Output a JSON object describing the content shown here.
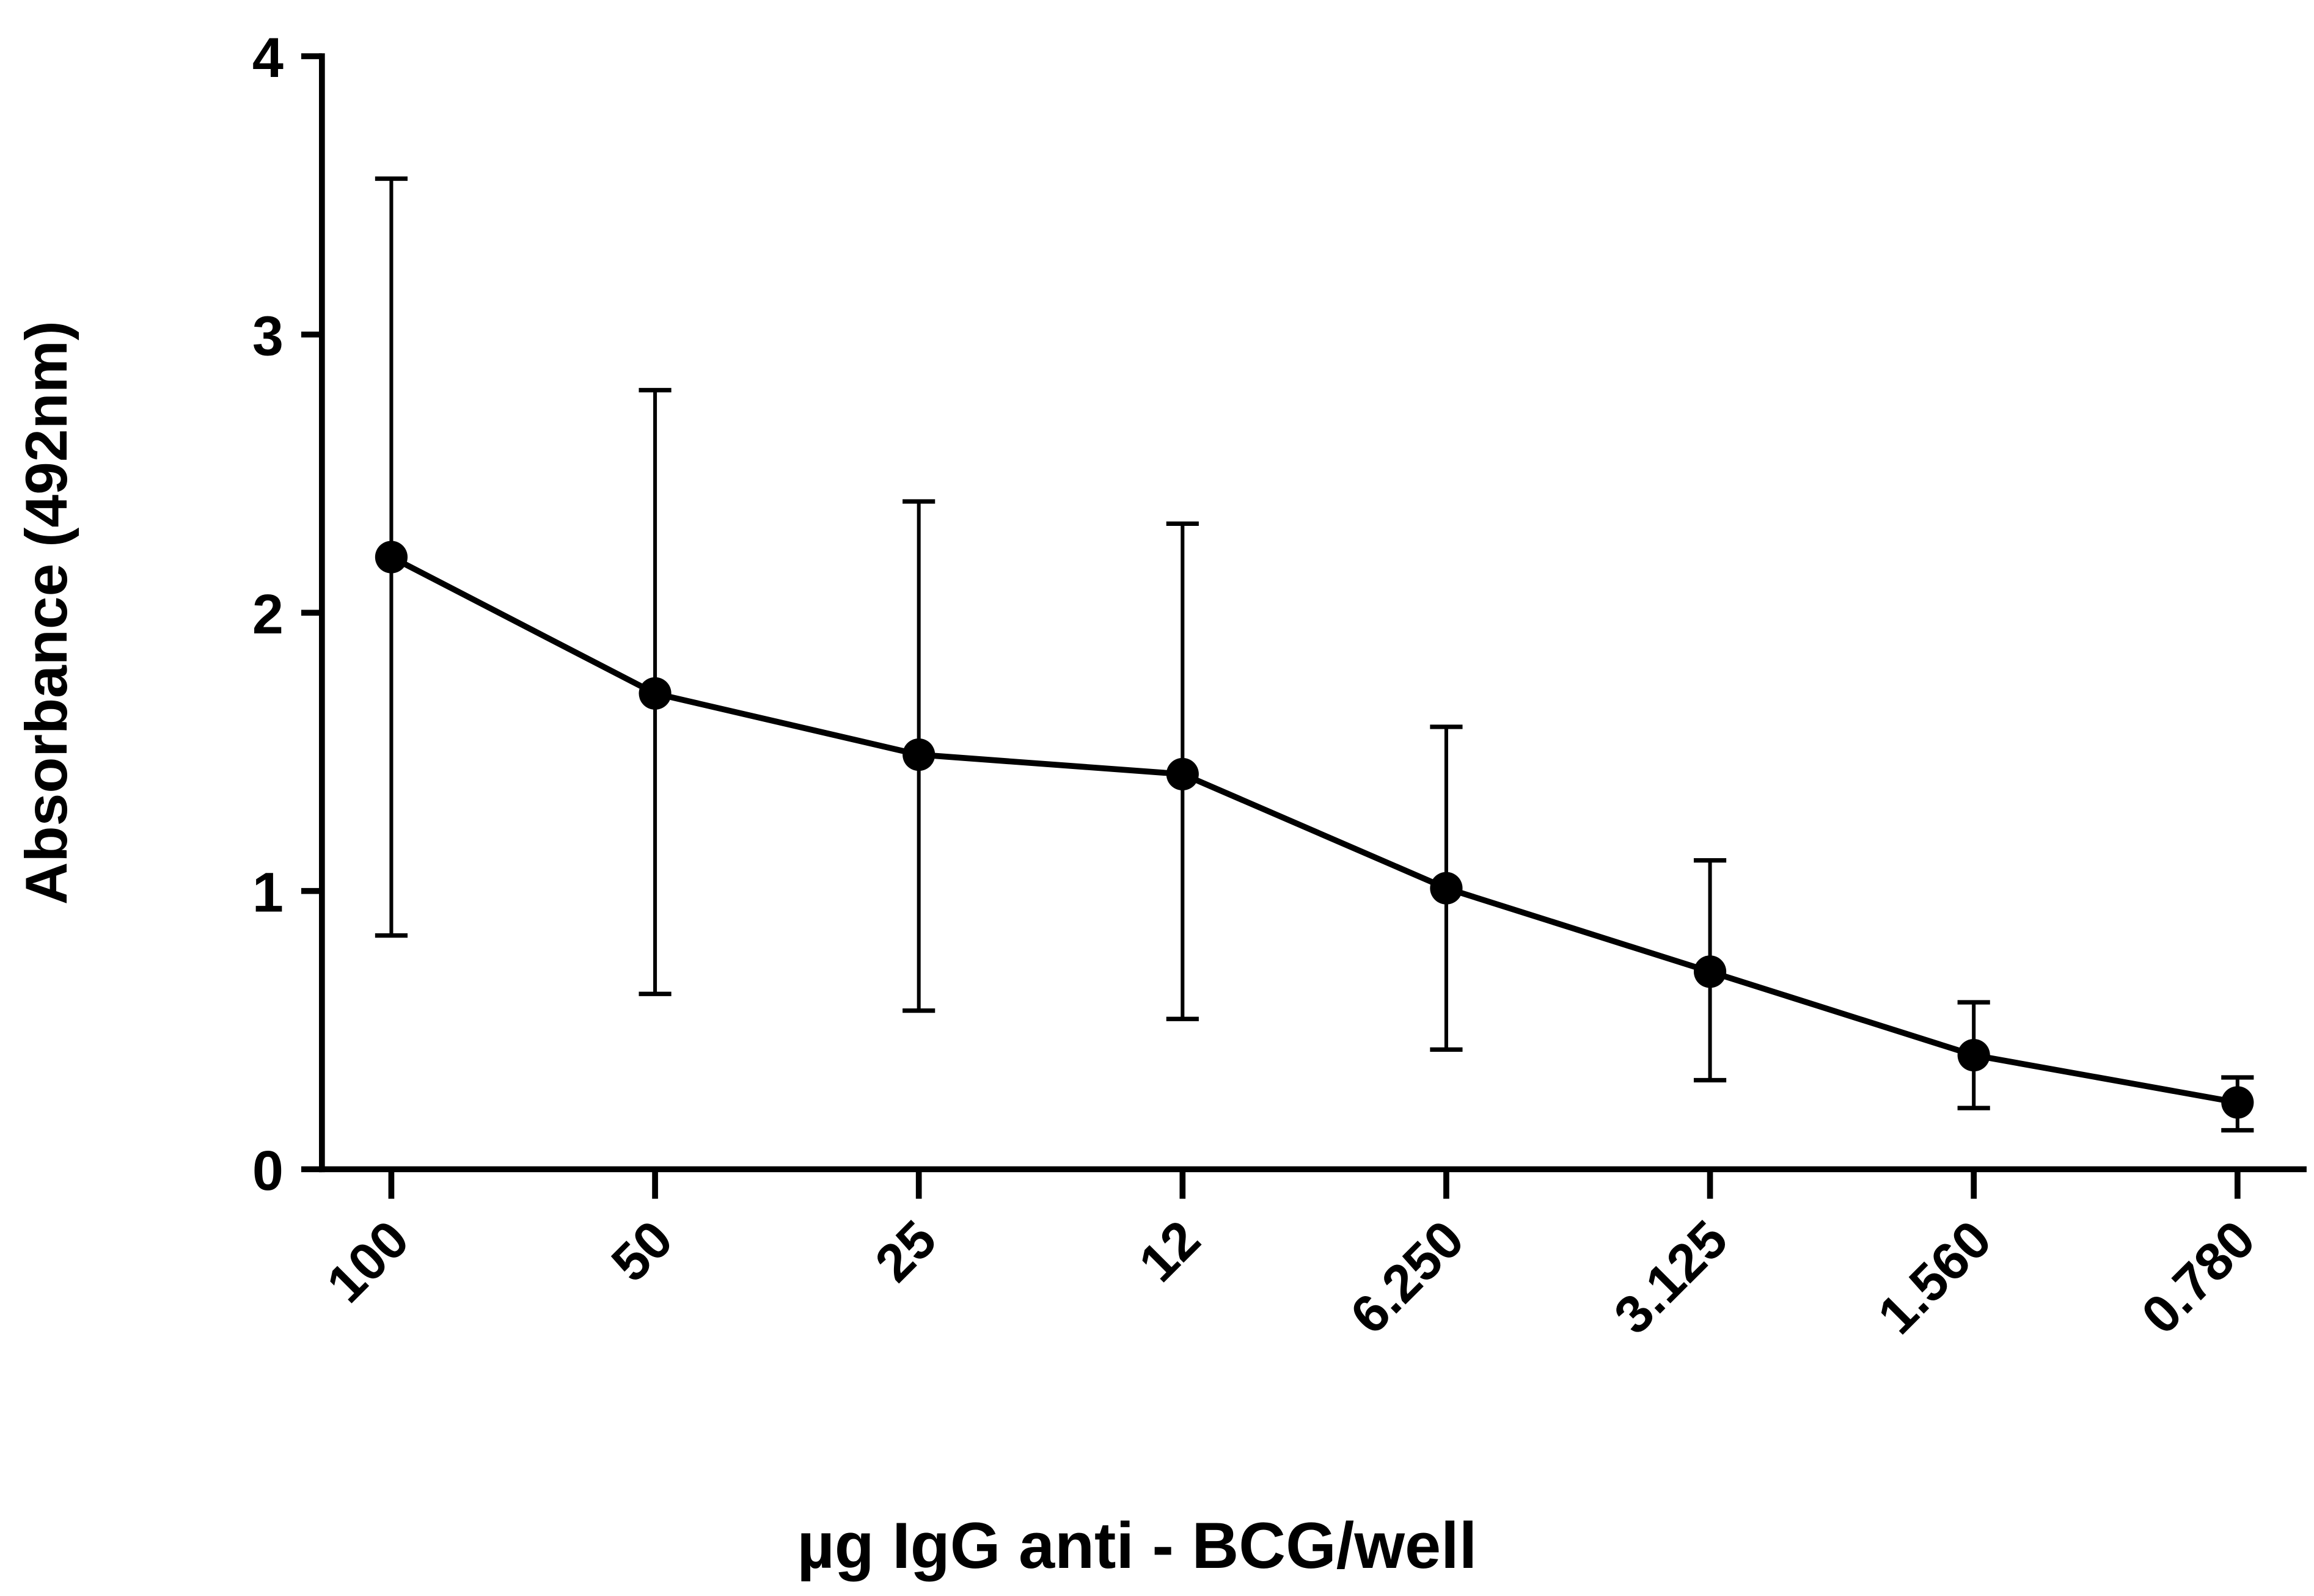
{
  "chart_data": {
    "type": "line",
    "title": "",
    "xlabel": "µg IgG anti - BCG/well",
    "ylabel": "Absorbance (492nm)",
    "categories": [
      "100",
      "50",
      "25",
      "12",
      "6.250",
      "3.125",
      "1.560",
      "0.780"
    ],
    "values": [
      2.2,
      1.71,
      1.49,
      1.42,
      1.01,
      0.71,
      0.41,
      0.24
    ],
    "error_upper": [
      3.56,
      2.8,
      2.4,
      2.32,
      1.59,
      1.11,
      0.6,
      0.33
    ],
    "error_lower": [
      0.84,
      0.63,
      0.57,
      0.54,
      0.43,
      0.32,
      0.22,
      0.14
    ],
    "ylim": [
      0,
      4
    ],
    "yticks": [
      "0",
      "1",
      "2",
      "3",
      "4"
    ],
    "grid": false,
    "marker": "filled-circle",
    "color": "#000000"
  }
}
